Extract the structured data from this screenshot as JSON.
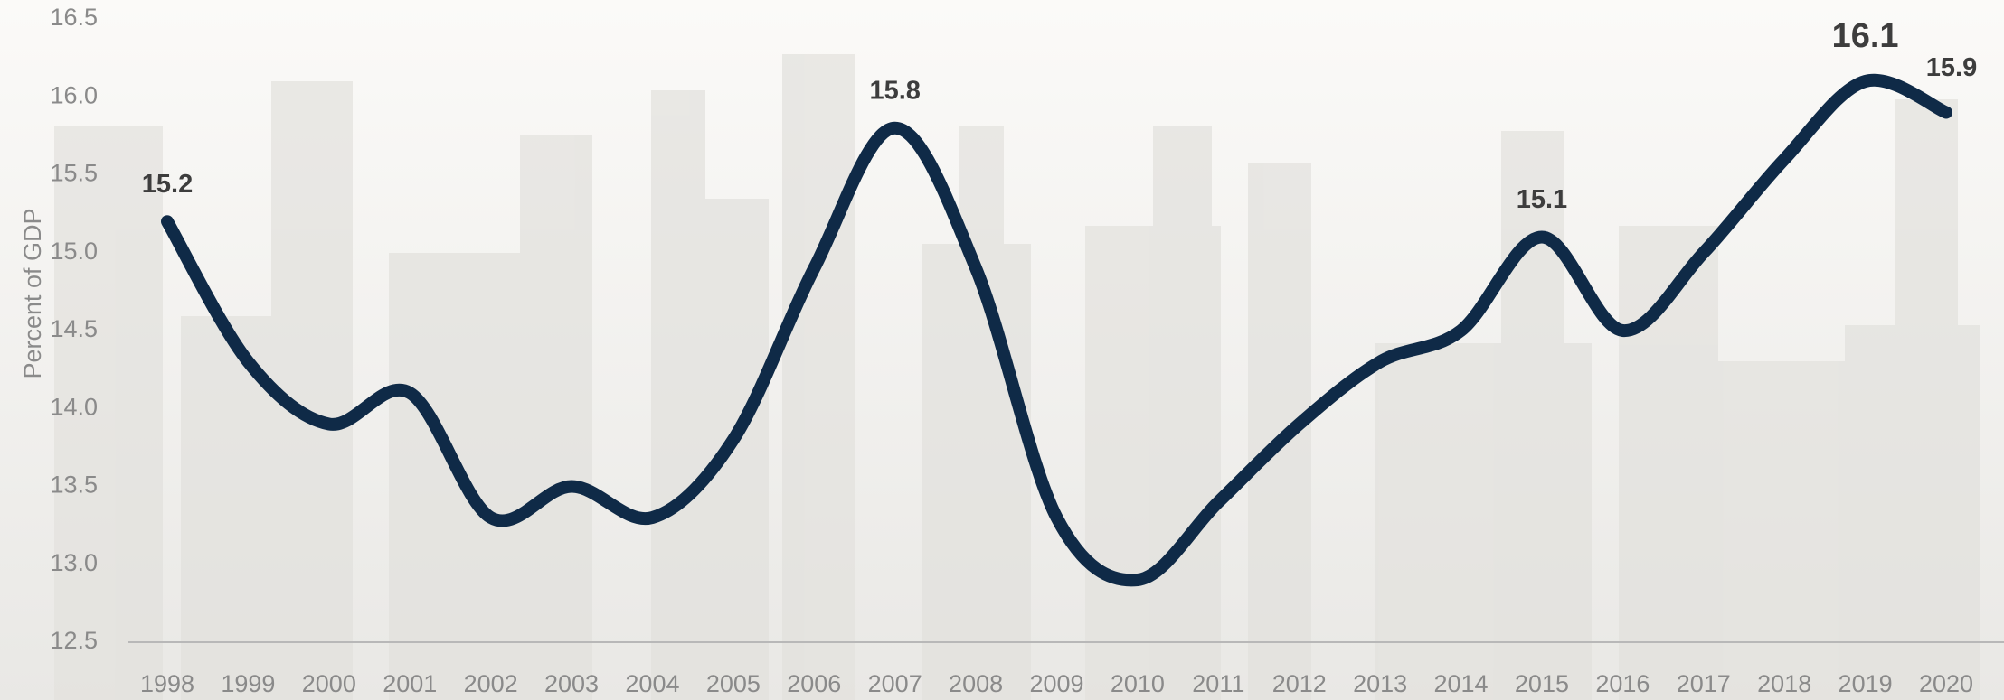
{
  "chart_data": {
    "type": "line",
    "y_label": "Percent of GDP",
    "categories": [
      "1998",
      "1999",
      "2000",
      "2001",
      "2002",
      "2003",
      "2004",
      "2005",
      "2006",
      "2007",
      "2008",
      "2009",
      "2010",
      "2011",
      "2012",
      "2013",
      "2014",
      "2015",
      "2016",
      "2017",
      "2018",
      "2019",
      "2020"
    ],
    "series": [
      {
        "name": "Percent of GDP",
        "color": "#0f2a47",
        "values": [
          15.2,
          14.3,
          13.9,
          14.1,
          13.3,
          13.5,
          13.3,
          13.8,
          14.9,
          15.8,
          14.9,
          13.3,
          12.9,
          13.4,
          13.9,
          14.3,
          14.5,
          15.1,
          14.5,
          15.0,
          15.6,
          16.1,
          15.9
        ],
        "value_labels": [
          "15.2",
          null,
          null,
          null,
          null,
          null,
          null,
          null,
          null,
          "15.8",
          null,
          null,
          null,
          null,
          null,
          null,
          null,
          "15.1",
          null,
          null,
          null,
          "16.1",
          "15.9"
        ]
      }
    ],
    "ylim": [
      12.5,
      16.5
    ],
    "yticks": [
      12.5,
      {
        "value": 13,
        "label": "13.0"
      },
      13.5,
      {
        "value": 14,
        "label": "14.0"
      },
      14.5,
      {
        "value": 15,
        "label": "15.0"
      },
      15.5,
      {
        "value": 16,
        "label": "16.0"
      },
      16.5
    ],
    "grid": false
  }
}
